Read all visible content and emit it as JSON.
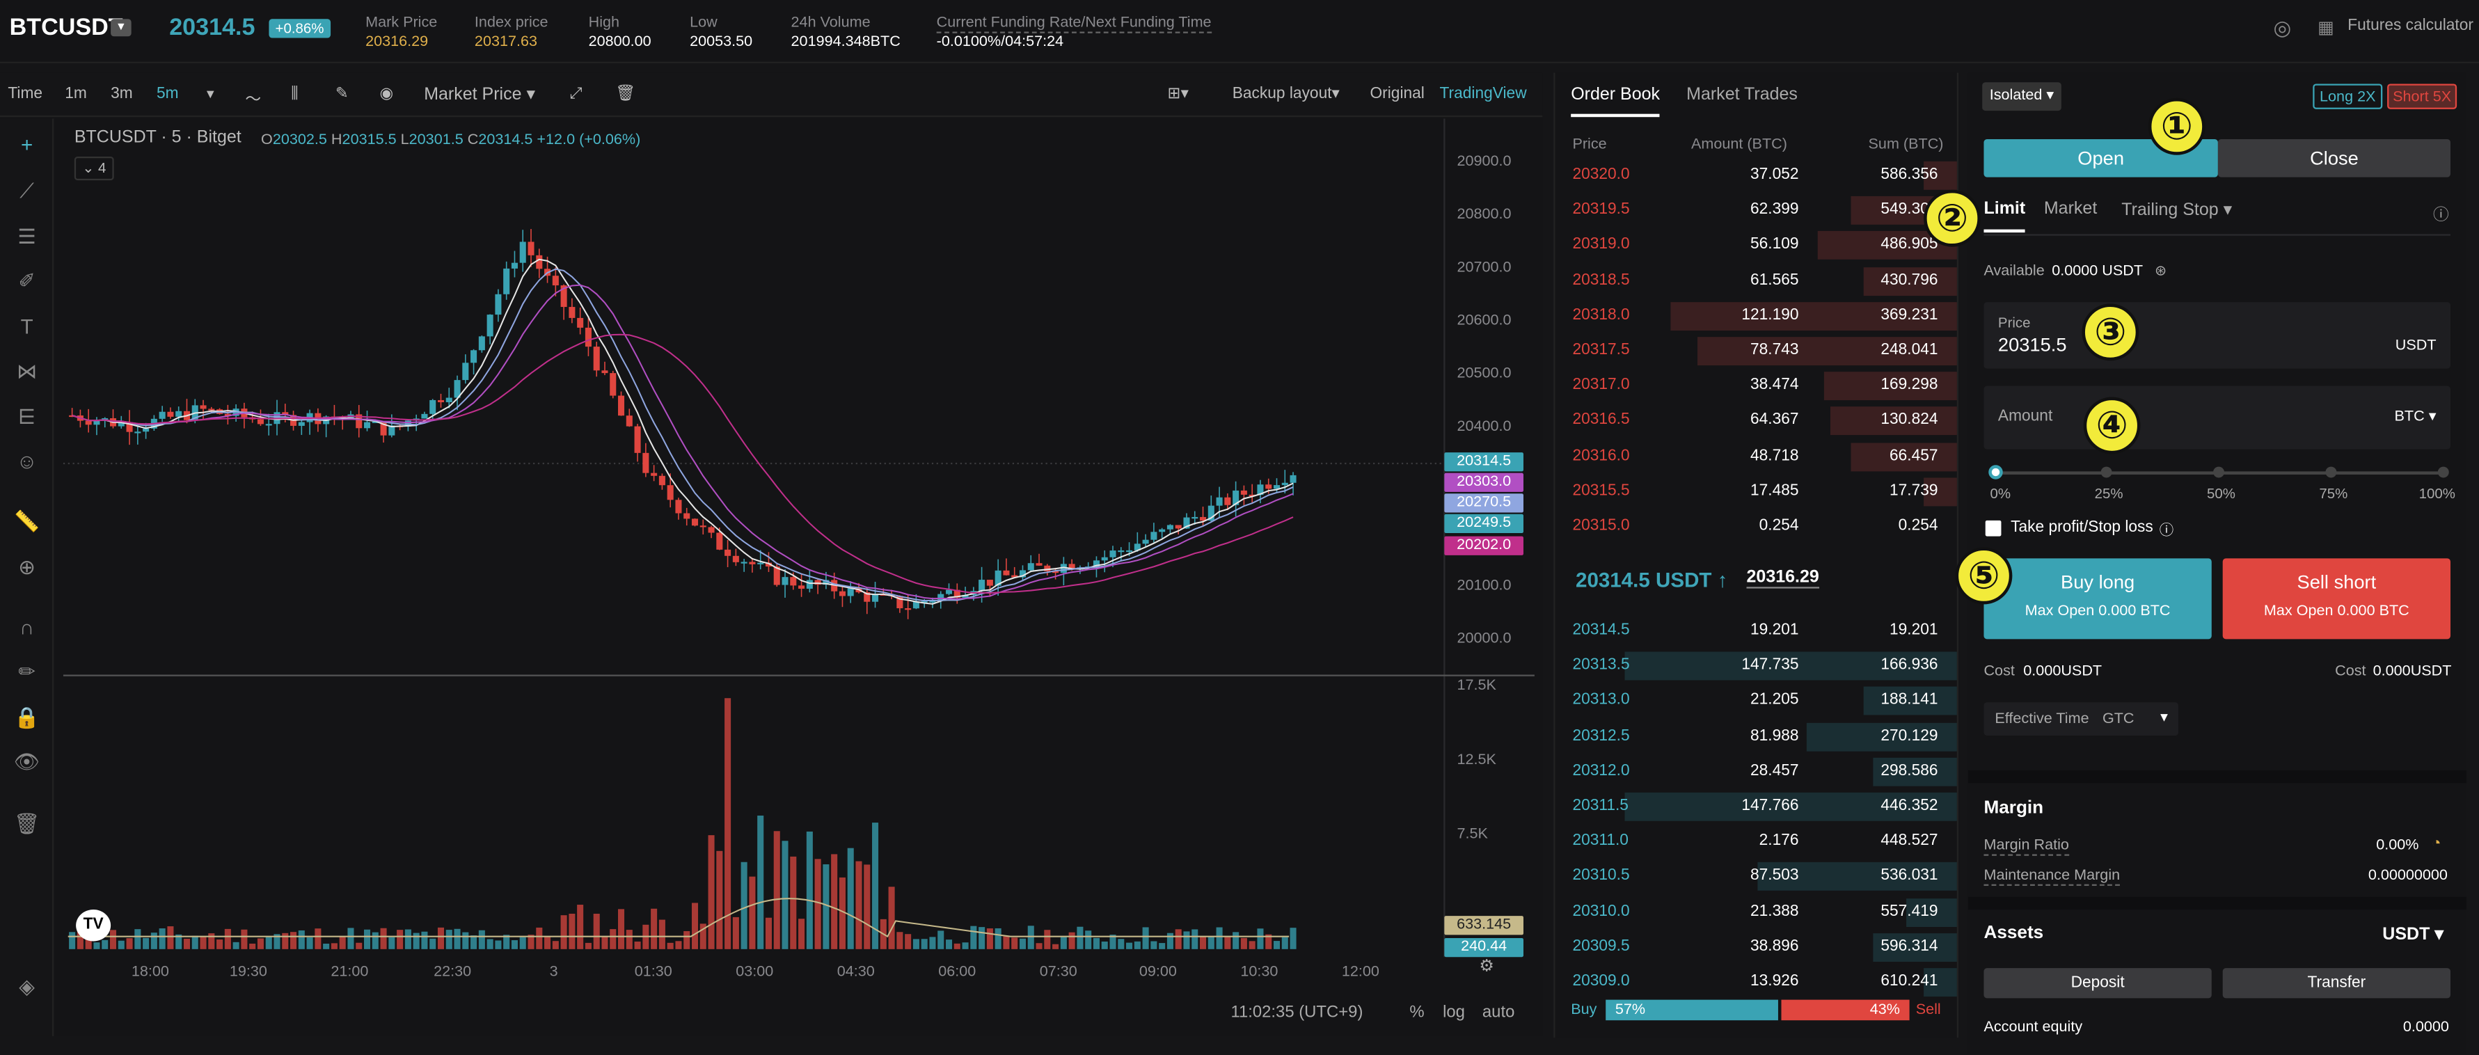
{
  "header": {
    "symbol": "BTCUSDT",
    "last_price": "20314.5",
    "change": "+0.86%",
    "stats": [
      {
        "label": "Mark Price",
        "value": "20316.29"
      },
      {
        "label": "Index price",
        "value": "20317.63"
      },
      {
        "label": "High",
        "value": "20800.00"
      },
      {
        "label": "Low",
        "value": "20053.50"
      },
      {
        "label": "24h Volume",
        "value": "201994.348BTC"
      },
      {
        "label": "Current Funding Rate/Next Funding Time",
        "value": "-0.0100%/04:57:24"
      }
    ],
    "futures_calculator": "Futures calculator"
  },
  "toolbar": {
    "time": "Time",
    "intervals": [
      "1m",
      "3m",
      "5m"
    ],
    "active_interval": "5m",
    "price_type": "Market Price",
    "backup_layout": "Backup layout",
    "original": "Original",
    "tradingview": "TradingView"
  },
  "chart": {
    "title": "BTCUSDT · 5 · Bitget",
    "ohlc": {
      "o": "20302.5",
      "h": "20315.5",
      "l": "20301.5",
      "c": "20314.5",
      "chg": "+12.0 (+0.06%)"
    },
    "series_count": "4",
    "price_ticks": [
      "20900.0",
      "20800.0",
      "20700.0",
      "20600.0",
      "20500.0",
      "20400.0",
      "20100.0",
      "20000.0"
    ],
    "volume_ticks": [
      "17.5K",
      "12.5K",
      "7.5K"
    ],
    "price_tags": [
      {
        "value": "20314.5",
        "color": "#3aa3b4"
      },
      {
        "value": "20303.0",
        "color": "#b14fc3"
      },
      {
        "value": "20270.5",
        "color": "#8fa6e0"
      },
      {
        "value": "20249.5",
        "color": "#3aa3b4"
      },
      {
        "value": "20202.0",
        "color": "#c02f8b"
      }
    ],
    "volume_tags": [
      {
        "value": "633.145",
        "color": "#c6b98a"
      },
      {
        "value": "240.44",
        "color": "#3aa3b4"
      }
    ],
    "time_ticks": [
      "18:00",
      "19:30",
      "21:00",
      "22:30",
      "3",
      "01:30",
      "03:00",
      "04:30",
      "06:00",
      "07:30",
      "09:00",
      "10:30",
      "12:00"
    ],
    "clock": "11:02:35 (UTC+9)",
    "pct": "%",
    "log": "log",
    "auto": "auto",
    "chart_data": {
      "type": "line",
      "title": "BTCUSDT · 5 · Bitget",
      "xlabel": "",
      "ylabel": "",
      "x": [
        "18:00",
        "19:30",
        "21:00",
        "22:30",
        "00:00",
        "01:30",
        "03:00",
        "03:30",
        "04:00",
        "04:30",
        "05:00",
        "06:00",
        "07:00",
        "07:30",
        "08:00",
        "09:00",
        "09:30",
        "10:00",
        "10:30",
        "11:00"
      ],
      "series": [
        {
          "name": "",
          "values": [
            20420,
            20400,
            20430,
            20410,
            20420,
            20390,
            20480,
            20750,
            20560,
            20300,
            20180,
            20110,
            20090,
            20060,
            20100,
            20130,
            20150,
            20200,
            20260,
            20314.5
          ]
        }
      ],
      "ylim": [
        19950,
        20950
      ]
    }
  },
  "orderbook": {
    "tabs": [
      "Order Book",
      "Market Trades"
    ],
    "headers": [
      "Price",
      "Amount (BTC)",
      "Sum (BTC)"
    ],
    "asks": [
      {
        "p": "20320.0",
        "a": "37.052",
        "s": "586.356",
        "d": 0.1
      },
      {
        "p": "20319.5",
        "a": "62.399",
        "s": "549.304",
        "d": 0.32
      },
      {
        "p": "20319.0",
        "a": "56.109",
        "s": "486.905",
        "d": 0.42
      },
      {
        "p": "20318.5",
        "a": "61.565",
        "s": "430.796",
        "d": 0.28
      },
      {
        "p": "20318.0",
        "a": "121.190",
        "s": "369.231",
        "d": 0.86
      },
      {
        "p": "20317.5",
        "a": "78.743",
        "s": "248.041",
        "d": 0.78
      },
      {
        "p": "20317.0",
        "a": "38.474",
        "s": "169.298",
        "d": 0.4
      },
      {
        "p": "20316.5",
        "a": "64.367",
        "s": "130.824",
        "d": 0.38
      },
      {
        "p": "20316.0",
        "a": "48.718",
        "s": "66.457",
        "d": 0.32
      },
      {
        "p": "20315.5",
        "a": "17.485",
        "s": "17.739",
        "d": 0.1
      },
      {
        "p": "20315.0",
        "a": "0.254",
        "s": "0.254",
        "d": 0.0
      }
    ],
    "mid_price": "20314.5 USDT ↑",
    "mark": "20316.29",
    "bids": [
      {
        "p": "20314.5",
        "a": "19.201",
        "s": "19.201",
        "d": 0.0
      },
      {
        "p": "20313.5",
        "a": "147.735",
        "s": "166.936",
        "d": 1.0
      },
      {
        "p": "20313.0",
        "a": "21.205",
        "s": "188.141",
        "d": 0.28
      },
      {
        "p": "20312.5",
        "a": "81.988",
        "s": "270.129",
        "d": 0.45
      },
      {
        "p": "20312.0",
        "a": "28.457",
        "s": "298.586",
        "d": 0.25
      },
      {
        "p": "20311.5",
        "a": "147.766",
        "s": "446.352",
        "d": 1.0
      },
      {
        "p": "20311.0",
        "a": "2.176",
        "s": "448.527",
        "d": 0.0
      },
      {
        "p": "20310.5",
        "a": "87.503",
        "s": "536.031",
        "d": 0.6
      },
      {
        "p": "20310.0",
        "a": "21.388",
        "s": "557.419",
        "d": 0.15
      },
      {
        "p": "20309.5",
        "a": "38.896",
        "s": "596.314",
        "d": 0.25
      },
      {
        "p": "20309.0",
        "a": "13.926",
        "s": "610.241",
        "d": 0.1
      }
    ],
    "buy_label": "Buy",
    "buy_pct": "57%",
    "buy_ratio": 0.57,
    "sell_pct": "43%",
    "sell_label": "Sell"
  },
  "trade": {
    "margin_mode": "Isolated",
    "long_lev": "Long 2X",
    "short_lev": "Short 5X",
    "open": "Open",
    "close": "Close",
    "order_types": [
      "Limit",
      "Market",
      "Trailing Stop"
    ],
    "available_label": "Available",
    "available_value": "0.0000 USDT",
    "price_label": "Price",
    "price_value": "20315.5",
    "price_unit": "USDT",
    "amount_label": "Amount",
    "amount_unit": "BTC",
    "slider_ticks": [
      "0%",
      "25%",
      "50%",
      "75%",
      "100%"
    ],
    "tpsl": "Take profit/Stop loss",
    "buy_long": "Buy long",
    "buy_max": "Max Open 0.000 BTC",
    "sell_short": "Sell short",
    "sell_max": "Max Open 0.000 BTC",
    "cost_label": "Cost",
    "cost_long": "0.000USDT",
    "cost_short": "0.000USDT",
    "effective_time_label": "Effective Time",
    "effective_time_value": "GTC",
    "margin_title": "Margin",
    "margin_ratio_label": "Margin Ratio",
    "margin_ratio_value": "0.00%",
    "maint_label": "Maintenance Margin",
    "maint_value": "0.00000000",
    "assets_title": "Assets",
    "assets_currency": "USDT",
    "deposit": "Deposit",
    "transfer": "Transfer",
    "equity_label": "Account equity",
    "equity_value": "0.0000"
  },
  "annotations": [
    "①",
    "②",
    "③",
    "④",
    "⑤"
  ]
}
